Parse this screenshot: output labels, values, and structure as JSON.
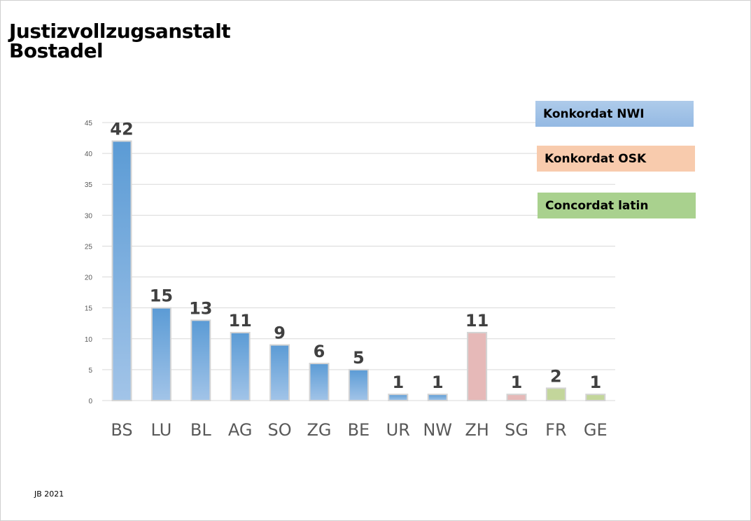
{
  "title_line1": "Justizvollzugsanstalt",
  "title_line2": "Bostadel",
  "footer": "JB 2021",
  "legend": [
    {
      "label": "Konkordat NWI",
      "color": "#9dc3e6"
    },
    {
      "label": "Konkordat OSK",
      "color": "#f8cbad"
    },
    {
      "label": "Concordat latin",
      "color": "#a9d18e"
    }
  ],
  "chart_data": {
    "type": "bar",
    "title": "Justizvollzugsanstalt Bostadel",
    "categories": [
      "BS",
      "LU",
      "BL",
      "AG",
      "SO",
      "ZG",
      "BE",
      "UR",
      "NW",
      "ZH",
      "SG",
      "FR",
      "GE"
    ],
    "values": [
      42,
      15,
      13,
      11,
      9,
      6,
      5,
      1,
      1,
      11,
      1,
      2,
      1
    ],
    "groups": [
      "Konkordat NWI",
      "Konkordat NWI",
      "Konkordat NWI",
      "Konkordat NWI",
      "Konkordat NWI",
      "Konkordat NWI",
      "Konkordat NWI",
      "Konkordat NWI",
      "Konkordat NWI",
      "Konkordat OSK",
      "Konkordat OSK",
      "Concordat latin",
      "Concordat latin"
    ],
    "ylim": [
      0,
      45
    ],
    "yticks": [
      0,
      5,
      10,
      15,
      20,
      25,
      30,
      35,
      40,
      45
    ],
    "grid": true,
    "legend_position": "top-right",
    "xlabel": "",
    "ylabel": ""
  }
}
